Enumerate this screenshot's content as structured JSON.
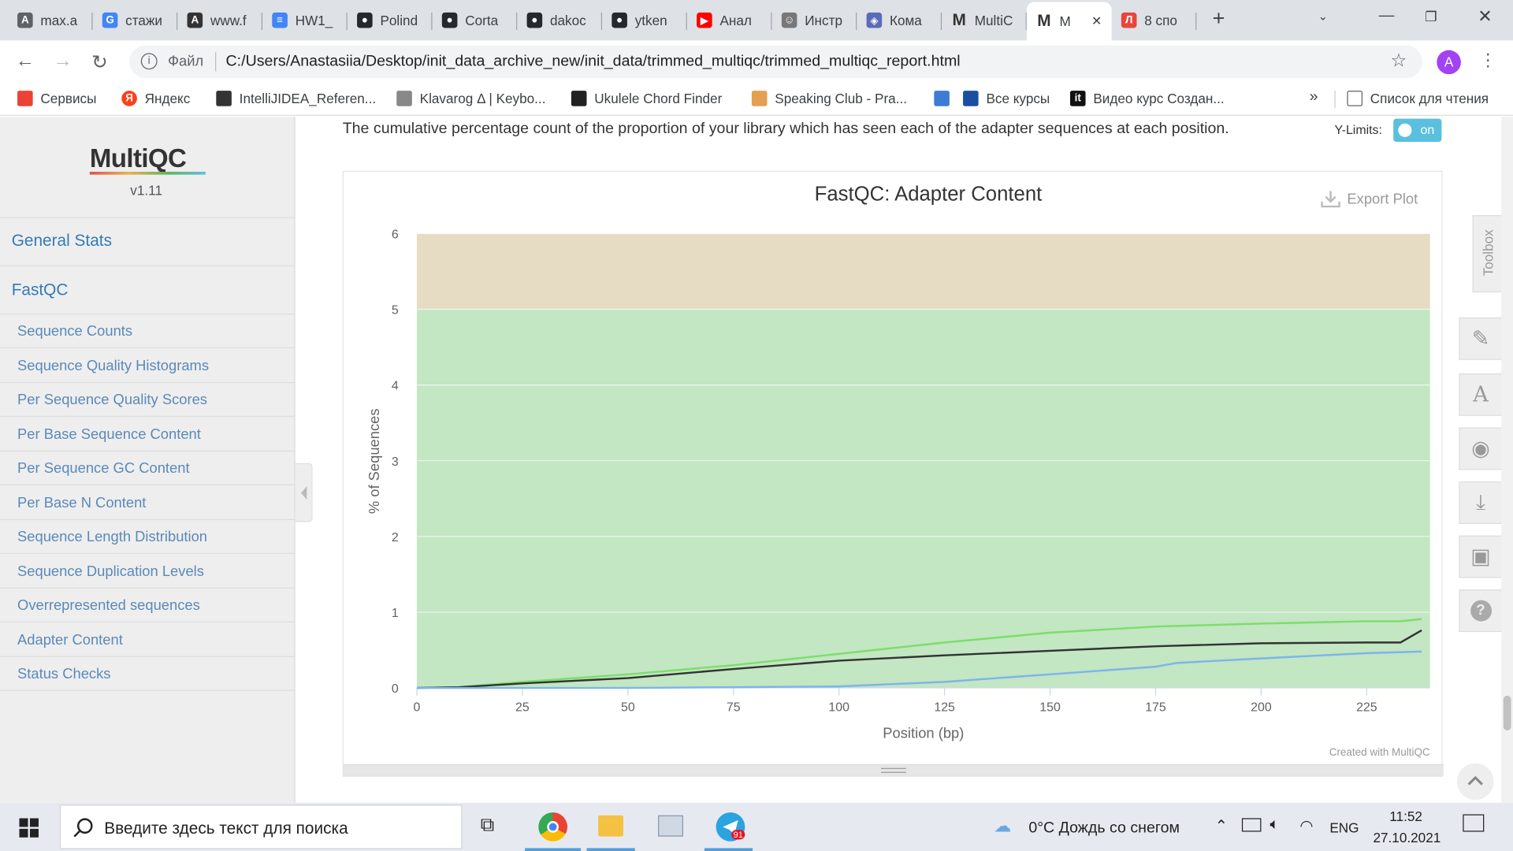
{
  "tabs": [
    {
      "label": "max.a",
      "icon": "a-icon",
      "color": "#5f6368"
    },
    {
      "label": "стажи",
      "icon": "google-icon",
      "color": "#4285f4"
    },
    {
      "label": "www.f",
      "icon": "a-icon",
      "color": "#333333"
    },
    {
      "label": "HW1_",
      "icon": "docs-icon",
      "color": "#4285f4"
    },
    {
      "label": "Polind",
      "icon": "github-icon",
      "color": "#24292e"
    },
    {
      "label": "Corta",
      "icon": "github-icon",
      "color": "#24292e"
    },
    {
      "label": "dakoc",
      "icon": "github-icon",
      "color": "#24292e"
    },
    {
      "label": "ytken",
      "icon": "github-icon",
      "color": "#24292e"
    },
    {
      "label": "Анал",
      "icon": "youtube-icon",
      "color": "#ff0000"
    },
    {
      "label": "Инстр",
      "icon": "linux-icon",
      "color": "#777777"
    },
    {
      "label": "Кома",
      "icon": "app-icon",
      "color": "#5a6bb8"
    },
    {
      "label": "MultiC",
      "icon": "m-icon",
      "color": "#333333"
    },
    {
      "label": "M",
      "icon": "m-icon",
      "color": "#333333",
      "active": true
    },
    {
      "label": "8 спо",
      "icon": "l-icon",
      "color": "#e8453c"
    }
  ],
  "url": {
    "prefix": "Файл",
    "value": "C:/Users/Anastasiia/Desktop/init_data_archive_new/init_data/trimmed_multiqc/trimmed_multiqc_report.html"
  },
  "profile_initial": "A",
  "bookmarks": [
    {
      "label": "Сервисы"
    },
    {
      "label": "Яндекс"
    },
    {
      "label": "IntelliJIDEA_Referen..."
    },
    {
      "label": "Klavarog Δ | Keybo..."
    },
    {
      "label": "Ukulele Chord Finder"
    },
    {
      "label": "Speaking Club - Pra..."
    },
    {
      "label": ""
    },
    {
      "label": "Все курсы"
    },
    {
      "label": "Видео курс Создан..."
    }
  ],
  "reading_list": "Список для чтения",
  "bookmarks_more": "»",
  "logo": {
    "text": "MultiQC",
    "version": "v1.11"
  },
  "nav": {
    "general_stats": "General Stats",
    "fastqc": "FastQC",
    "items": [
      "Sequence Counts",
      "Sequence Quality Histograms",
      "Per Sequence Quality Scores",
      "Per Base Sequence Content",
      "Per Sequence GC Content",
      "Per Base N Content",
      "Sequence Length Distribution",
      "Sequence Duplication Levels",
      "Overrepresented sequences",
      "Adapter Content",
      "Status Checks"
    ]
  },
  "description": "The cumulative percentage count of the proportion of your library which has seen each of the adapter sequences at each position.",
  "ylimits": {
    "label": "Y-Limits:",
    "state": "on"
  },
  "export_label": "Export Plot",
  "credit": "Created with MultiQC",
  "toolbox_label": "Toolbox",
  "chart_data": {
    "type": "line",
    "title": "FastQC: Adapter Content",
    "xlabel": "Position (bp)",
    "ylabel": "% of Sequences",
    "xlim": [
      0,
      240
    ],
    "ylim": [
      0,
      6
    ],
    "xticks": [
      0,
      25,
      50,
      75,
      100,
      125,
      150,
      175,
      200,
      225
    ],
    "yticks": [
      0,
      1,
      2,
      3,
      4,
      5,
      6
    ],
    "bands": [
      {
        "from": 0,
        "to": 5,
        "color": "#c3e6c3"
      },
      {
        "from": 5,
        "to": 6,
        "color": "#e6dcc3"
      }
    ],
    "series": [
      {
        "color": "#7cde6a",
        "x": [
          0,
          10,
          25,
          50,
          75,
          100,
          125,
          150,
          175,
          200,
          225,
          233,
          238
        ],
        "y": [
          0,
          0.01,
          0.08,
          0.18,
          0.3,
          0.45,
          0.6,
          0.73,
          0.81,
          0.85,
          0.88,
          0.88,
          0.91
        ]
      },
      {
        "color": "#333333",
        "x": [
          0,
          10,
          25,
          50,
          75,
          100,
          125,
          150,
          175,
          200,
          225,
          233,
          238
        ],
        "y": [
          0,
          0.01,
          0.06,
          0.13,
          0.25,
          0.36,
          0.43,
          0.49,
          0.55,
          0.59,
          0.6,
          0.6,
          0.76
        ]
      },
      {
        "color": "#7cb5ec",
        "x": [
          0,
          10,
          25,
          50,
          75,
          100,
          125,
          150,
          175,
          180,
          200,
          225,
          238
        ],
        "y": [
          0,
          0,
          0,
          0,
          0.01,
          0.02,
          0.08,
          0.18,
          0.28,
          0.33,
          0.39,
          0.46,
          0.48
        ]
      }
    ]
  },
  "taskbar": {
    "search_placeholder": "Введите здесь текст для поиска",
    "weather": "0°C  Дождь со снегом",
    "lang": "ENG",
    "time": "11:52",
    "date": "27.10.2021",
    "telegram_badge": "91"
  }
}
